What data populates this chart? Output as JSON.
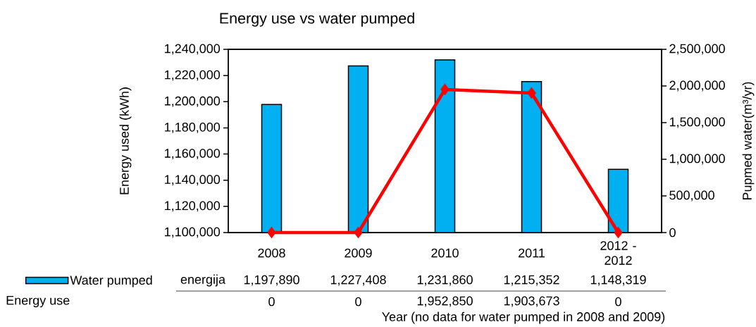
{
  "chart_data": {
    "type": "bar",
    "title": "Energy use vs water pumped",
    "xlabel": "Year (no data for water pumped in 2008 and 2009)",
    "ylabel": "Energy used (kWh)",
    "y2label": "Pupmed water(m³/yr)",
    "categories": [
      "2008",
      "2009",
      "2010",
      "2011",
      "2012 - 2012"
    ],
    "series": [
      {
        "name": "Water pumped",
        "color": "#00b0f0",
        "values": [
          1197890,
          1227408,
          1231860,
          1215352,
          1148319
        ],
        "value_labels": [
          "1,197,890",
          "1,227,408",
          "1,231,860",
          "1,215,352",
          "1,148,319"
        ]
      },
      {
        "type": "line",
        "axis": "y2",
        "color": "#ff0000",
        "marker": "diamond",
        "values": [
          0,
          0,
          1952850,
          1903673,
          0
        ],
        "value_labels": [
          "0",
          "0",
          "1,952,850",
          "1,903,673",
          "0"
        ]
      }
    ],
    "ylim": [
      1100000,
      1240000
    ],
    "yticks": [
      {
        "value": 1100000,
        "label": "1,100,000"
      },
      {
        "value": 1120000,
        "label": "1,120,000"
      },
      {
        "value": 1140000,
        "label": "1,140,000"
      },
      {
        "value": 1160000,
        "label": "1,160,000"
      },
      {
        "value": 1180000,
        "label": "1,180,000"
      },
      {
        "value": 1200000,
        "label": "1,200,000"
      },
      {
        "value": 1220000,
        "label": "1,220,000"
      },
      {
        "value": 1240000,
        "label": "1,240,000"
      }
    ],
    "y2lim": [
      0,
      2500000
    ],
    "y2ticks": [
      0,
      {
        "value": 500000,
        "label": "500,000"
      },
      {
        "value": 1000000,
        "label": "1,000,000"
      },
      {
        "value": 1500000,
        "label": "1,500,000"
      },
      {
        "value": 2000000,
        "label": "2,000,000"
      },
      {
        "value": 2500000,
        "label": "2,500,000"
      }
    ],
    "legend": "bottom left",
    "annotations": [
      "energija",
      "Energy use"
    ]
  }
}
